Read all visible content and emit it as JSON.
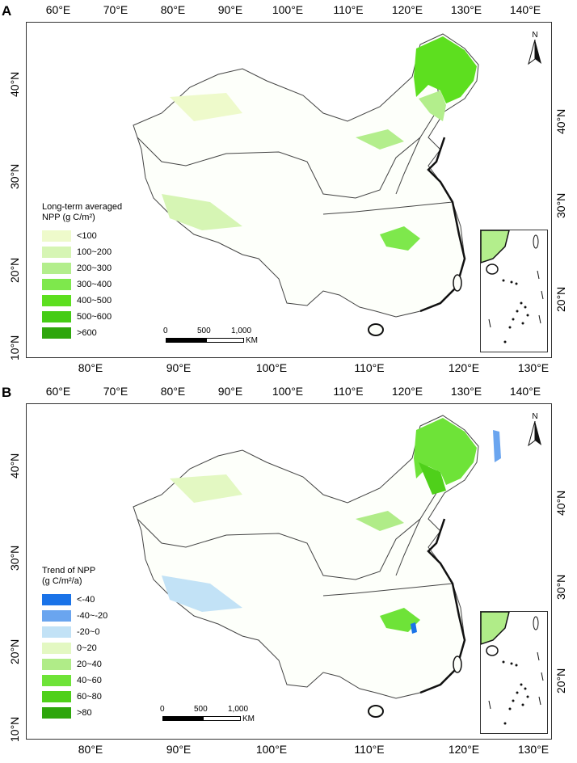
{
  "panels": [
    {
      "letter": "A",
      "legend": {
        "title_line1": "Long-term averaged",
        "title_line2": "NPP (g C/m²)",
        "items": [
          {
            "label": "<100",
            "color": "#eefacb"
          },
          {
            "label": "100~200",
            "color": "#d6f5b4"
          },
          {
            "label": "200~300",
            "color": "#b3ee8c"
          },
          {
            "label": "300~400",
            "color": "#7ee84c"
          },
          {
            "label": "400~500",
            "color": "#5ddf1f"
          },
          {
            "label": "500~600",
            "color": "#45cc15"
          },
          {
            "label": ">600",
            "color": "#2ea60c"
          }
        ]
      }
    },
    {
      "letter": "B",
      "legend": {
        "title_line1": "Trend of NPP",
        "title_line2": "(g C/m²/a)",
        "items": [
          {
            "label": "<-40",
            "color": "#1a73e8"
          },
          {
            "label": "-40~-20",
            "color": "#6aa5ef"
          },
          {
            "label": "-20~0",
            "color": "#c2e2f6"
          },
          {
            "label": "0~20",
            "color": "#e3f8c2"
          },
          {
            "label": "20~40",
            "color": "#b0ec88"
          },
          {
            "label": "40~60",
            "color": "#6ee338"
          },
          {
            "label": "60~80",
            "color": "#4fd01a"
          },
          {
            "label": ">80",
            "color": "#2ea60c"
          }
        ]
      }
    }
  ],
  "axes": {
    "top_ticks": [
      "60°E",
      "70°E",
      "80°E",
      "90°E",
      "100°E",
      "110°E",
      "120°E",
      "130°E",
      "140°E"
    ],
    "bottom_ticks": [
      "80°E",
      "90°E",
      "100°E",
      "110°E",
      "120°E",
      "130°E"
    ],
    "left_ticks": [
      "40°N",
      "30°N",
      "20°N",
      "10°N"
    ],
    "right_ticks": [
      "40°N",
      "30°N",
      "20°N"
    ]
  },
  "scalebar": {
    "labels": [
      "0",
      "500",
      "1,000"
    ],
    "unit": "KM"
  },
  "north_label": "N"
}
